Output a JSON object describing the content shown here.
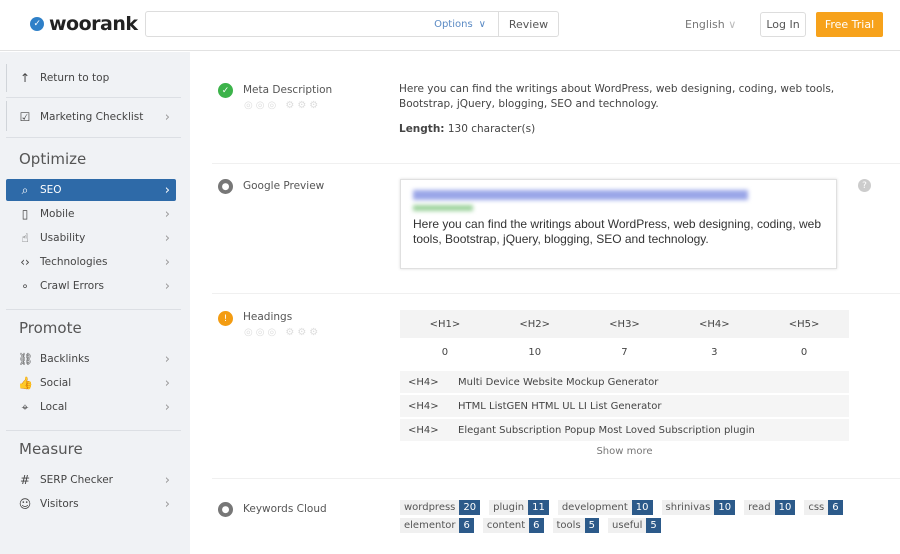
{
  "header": {
    "logo": "woorank",
    "search_value": "",
    "options_label": "Options",
    "review_label": "Review",
    "language": "English",
    "login_label": "Log In",
    "trial_label": "Free Trial"
  },
  "sidebar": {
    "top": [
      {
        "label": "Return to top",
        "icon": "arrow-up-icon"
      },
      {
        "label": "Marketing Checklist",
        "icon": "checkbox-icon"
      }
    ],
    "sections": [
      {
        "title": "Optimize",
        "items": [
          {
            "label": "SEO",
            "icon": "search-icon",
            "active": true
          },
          {
            "label": "Mobile",
            "icon": "mobile-icon"
          },
          {
            "label": "Usability",
            "icon": "hand-pointer-icon"
          },
          {
            "label": "Technologies",
            "icon": "code-icon"
          },
          {
            "label": "Crawl Errors",
            "icon": "network-icon"
          }
        ]
      },
      {
        "title": "Promote",
        "items": [
          {
            "label": "Backlinks",
            "icon": "link-icon"
          },
          {
            "label": "Social",
            "icon": "thumbs-up-icon"
          },
          {
            "label": "Local",
            "icon": "map-pin-icon"
          }
        ]
      },
      {
        "title": "Measure",
        "items": [
          {
            "label": "SERP Checker",
            "icon": "hashtag-icon"
          },
          {
            "label": "Visitors",
            "icon": "users-icon"
          }
        ]
      }
    ]
  },
  "main": {
    "meta": {
      "label": "Meta Description",
      "status": "pass",
      "text": "Here you can find the writings about WordPress, web designing, coding, web tools, Bootstrap, jQuery, blogging, SEO and technology.",
      "length_label": "Length:",
      "length_value": "130 character(s)"
    },
    "preview": {
      "label": "Google Preview",
      "status": "info",
      "description": "Here you can find the writings about WordPress, web designing, coding, web tools, Bootstrap, jQuery, blogging, SEO and technology."
    },
    "headings": {
      "label": "Headings",
      "status": "warning",
      "columns": [
        "<H1>",
        "<H2>",
        "<H3>",
        "<H4>",
        "<H5>"
      ],
      "counts": [
        "0",
        "10",
        "7",
        "3",
        "0"
      ],
      "list": [
        {
          "tag": "<H4>",
          "text": "Multi Device Website Mockup Generator"
        },
        {
          "tag": "<H4>",
          "text": "HTML ListGEN HTML UL LI List Generator"
        },
        {
          "tag": "<H4>",
          "text": "Elegant Subscription Popup Most Loved Subscription plugin"
        }
      ],
      "show_more": "Show more"
    },
    "keywords": {
      "label": "Keywords Cloud",
      "status": "info",
      "tags": [
        {
          "word": "wordpress",
          "count": "20"
        },
        {
          "word": "plugin",
          "count": "11"
        },
        {
          "word": "development",
          "count": "10"
        },
        {
          "word": "shrinivas",
          "count": "10"
        },
        {
          "word": "read",
          "count": "10"
        },
        {
          "word": "css",
          "count": "6"
        },
        {
          "word": "elementor",
          "count": "6"
        },
        {
          "word": "content",
          "count": "6"
        },
        {
          "word": "tools",
          "count": "5"
        },
        {
          "word": "useful",
          "count": "5"
        }
      ]
    }
  },
  "colors": {
    "accent": "#2e6aa8",
    "trial": "#f7a21b",
    "pass": "#3cb34a",
    "warning": "#f39c12",
    "info": "#777777",
    "tag_count": "#2c5a8a"
  }
}
